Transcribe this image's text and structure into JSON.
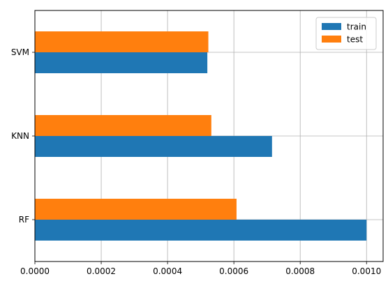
{
  "chart_data": {
    "type": "bar",
    "orientation": "horizontal",
    "categories": [
      "RF",
      "KNN",
      "SVM"
    ],
    "series": [
      {
        "name": "train",
        "values": [
          0.001,
          0.000715,
          0.00052
        ],
        "color": "#1f77b4"
      },
      {
        "name": "test",
        "values": [
          0.000608,
          0.000532,
          0.000523
        ],
        "color": "#ff7f0e"
      }
    ],
    "title": "",
    "xlabel": "",
    "ylabel": "",
    "xlim": [
      0,
      0.00105
    ],
    "xticks": [
      0,
      0.0002,
      0.0004,
      0.0006,
      0.0008,
      0.001
    ],
    "xtick_labels": [
      "0.0000",
      "0.0002",
      "0.0004",
      "0.0006",
      "0.0008",
      "0.0010"
    ],
    "grid": true,
    "legend": {
      "placement": "top-right",
      "entries": [
        "train",
        "test"
      ]
    }
  }
}
